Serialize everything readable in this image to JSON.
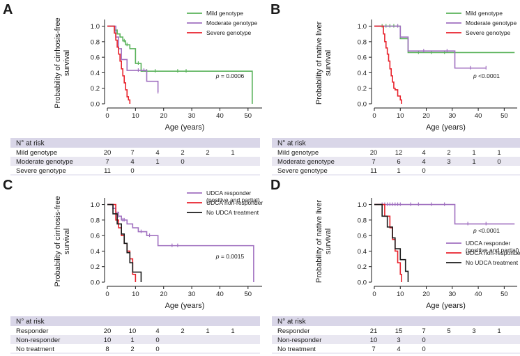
{
  "chart_data": [
    {
      "type": "line",
      "subtype": "kaplan-meier",
      "panel_label": "A",
      "ylabel_lines": [
        "Probability of cirrhosis-free",
        "survival"
      ],
      "xlabel": "Age (years)",
      "xlim": [
        0,
        55
      ],
      "ylim": [
        0,
        1.05
      ],
      "xticks": [
        0,
        10,
        20,
        30,
        40,
        50
      ],
      "yticks": [
        "0.0",
        "0.2",
        "0.4",
        "0.6",
        "0.8",
        "1.0"
      ],
      "p_label": "p",
      "p_value": " = 0.0006",
      "series": [
        {
          "name": "Mild genotype",
          "color": "#59b25a",
          "x": [
            0,
            2.5,
            3.5,
            4.5,
            5.5,
            6.5,
            8,
            10,
            12,
            51.5,
            51.5
          ],
          "y": [
            1.0,
            0.95,
            0.9,
            0.86,
            0.81,
            0.76,
            0.71,
            0.52,
            0.42,
            0.42,
            0.0
          ],
          "censor_x": [
            6,
            7,
            11,
            14,
            17,
            25,
            28
          ]
        },
        {
          "name": "Moderate genotype",
          "color": "#a070c0",
          "x": [
            0,
            3,
            4,
            5,
            7,
            10,
            14,
            18,
            18
          ],
          "y": [
            1.0,
            0.86,
            0.71,
            0.57,
            0.43,
            0.43,
            0.29,
            0.29,
            0.15
          ],
          "censor_x": [
            11,
            13,
            18
          ]
        },
        {
          "name": "Severe genotype",
          "color": "#e8212b",
          "x": [
            0,
            2.5,
            3,
            3.5,
            4,
            4.5,
            5,
            5.5,
            6,
            6.5,
            7,
            7.5,
            8
          ],
          "y": [
            1.0,
            0.91,
            0.82,
            0.73,
            0.64,
            0.55,
            0.45,
            0.36,
            0.27,
            0.18,
            0.09,
            0.05,
            0.0
          ],
          "censor_x": []
        }
      ],
      "risk_table": {
        "title": "N° at risk",
        "rows": [
          {
            "label": "Mild genotype",
            "values": [
              "20",
              "7",
              "4",
              "2",
              "2",
              "1"
            ]
          },
          {
            "label": "Moderate genotype",
            "values": [
              "7",
              "4",
              "1",
              "0"
            ]
          },
          {
            "label": "Severe genotype",
            "values": [
              "11",
              "0"
            ]
          }
        ]
      }
    },
    {
      "type": "line",
      "subtype": "kaplan-meier",
      "panel_label": "B",
      "ylabel_lines": [
        "Probability of native liver",
        "survival"
      ],
      "xlabel": "Age (years)",
      "xlim": [
        0,
        55
      ],
      "ylim": [
        0,
        1.05
      ],
      "xticks": [
        0,
        10,
        20,
        30,
        40,
        50
      ],
      "yticks": [
        "0.0",
        "0.2",
        "0.4",
        "0.6",
        "0.8",
        "1.0"
      ],
      "p_label": "p",
      "p_value": " <0.0001",
      "series": [
        {
          "name": "Mild genotype",
          "color": "#59b25a",
          "x": [
            0,
            10,
            13,
            54
          ],
          "y": [
            1.0,
            0.84,
            0.66,
            0.66
          ],
          "censor_x": [
            3,
            4.5,
            6,
            7.5,
            9,
            17,
            22,
            27
          ]
        },
        {
          "name": "Moderate genotype",
          "color": "#a070c0",
          "x": [
            0,
            10,
            13,
            31,
            43
          ],
          "y": [
            1.0,
            0.86,
            0.68,
            0.46,
            0.46
          ],
          "censor_x": [
            9,
            19,
            28,
            37,
            43
          ]
        },
        {
          "name": "Severe genotype",
          "color": "#e8212b",
          "x": [
            0,
            3.5,
            4,
            4.5,
            5,
            5.5,
            6,
            6.5,
            7,
            7.5,
            8,
            9,
            10,
            10.5
          ],
          "y": [
            1.0,
            0.9,
            0.8,
            0.72,
            0.64,
            0.55,
            0.45,
            0.36,
            0.28,
            0.2,
            0.18,
            0.1,
            0.05,
            0.0
          ],
          "censor_x": []
        }
      ],
      "risk_table": {
        "title": "N° at risk",
        "rows": [
          {
            "label": "Mild genotype",
            "values": [
              "20",
              "12",
              "4",
              "2",
              "1",
              "1"
            ]
          },
          {
            "label": "Moderate genotype",
            "values": [
              "7",
              "6",
              "4",
              "3",
              "1",
              "0"
            ]
          },
          {
            "label": "Severe genotype",
            "values": [
              "11",
              "1",
              "0"
            ]
          }
        ]
      }
    },
    {
      "type": "line",
      "subtype": "kaplan-meier",
      "panel_label": "C",
      "ylabel_lines": [
        "Probability of cirrhosis-free",
        "survival"
      ],
      "xlabel": "Age (years)",
      "xlim": [
        0,
        55
      ],
      "ylim": [
        0,
        1.05
      ],
      "xticks": [
        0,
        10,
        20,
        30,
        40,
        50
      ],
      "yticks": [
        "0.0",
        "0.2",
        "0.4",
        "0.6",
        "0.8",
        "1.0"
      ],
      "p_label": "p",
      "p_value": " = 0.0015",
      "series": [
        {
          "name": "UDCA responder|(positive and partial)",
          "color": "#a070c0",
          "x": [
            0,
            2,
            3,
            4,
            5,
            7,
            9,
            11,
            14,
            18,
            52,
            52
          ],
          "y": [
            1.0,
            0.95,
            0.9,
            0.85,
            0.8,
            0.75,
            0.7,
            0.65,
            0.6,
            0.47,
            0.47,
            0.0
          ],
          "censor_x": [
            4,
            5.5,
            6,
            12,
            15,
            23,
            25
          ]
        },
        {
          "name": "UDCA non-responder",
          "color": "#e8212b",
          "x": [
            0,
            3,
            4,
            5,
            6,
            7,
            8,
            9,
            10
          ],
          "y": [
            1.0,
            0.8,
            0.7,
            0.6,
            0.5,
            0.4,
            0.3,
            0.1,
            0.0
          ],
          "censor_x": []
        },
        {
          "name": "No UDCA treatment",
          "color": "#1a1a1a",
          "x": [
            0,
            2,
            3.5,
            5,
            6,
            7,
            8,
            9,
            12
          ],
          "y": [
            1.0,
            0.88,
            0.75,
            0.62,
            0.5,
            0.38,
            0.25,
            0.13,
            0.0
          ],
          "censor_x": []
        }
      ],
      "risk_table": {
        "title": "N° at risk",
        "rows": [
          {
            "label": "Responder",
            "values": [
              "20",
              "10",
              "4",
              "2",
              "1",
              "1"
            ]
          },
          {
            "label": "Non-responder",
            "values": [
              "10",
              "1",
              "0"
            ]
          },
          {
            "label": "No treatment",
            "values": [
              "8",
              "2",
              "0"
            ]
          }
        ]
      }
    },
    {
      "type": "line",
      "subtype": "kaplan-meier",
      "panel_label": "D",
      "ylabel_lines": [
        "Probability of native liver",
        "survival"
      ],
      "xlabel": "Age (years)",
      "xlim": [
        0,
        55
      ],
      "ylim": [
        0,
        1.05
      ],
      "xticks": [
        0,
        10,
        20,
        30,
        40,
        50
      ],
      "yticks": [
        "0.0",
        "0.2",
        "0.4",
        "0.6",
        "0.8",
        "1.0"
      ],
      "p_label": "p",
      "p_value": " <0.0001",
      "series": [
        {
          "name": "UDCA responder|(positive and partial)",
          "color": "#a070c0",
          "x": [
            0,
            31,
            54
          ],
          "y": [
            1.0,
            0.75,
            0.75
          ],
          "censor_x": [
            3,
            4,
            5,
            6,
            7,
            8,
            9,
            10,
            14,
            17,
            22,
            27,
            36,
            43
          ]
        },
        {
          "name": "UDCA non-responder",
          "color": "#e8212b",
          "x": [
            0,
            4,
            6,
            7,
            8,
            9,
            10,
            10.5
          ],
          "y": [
            1.0,
            0.85,
            0.7,
            0.55,
            0.4,
            0.25,
            0.1,
            0.0
          ],
          "censor_x": []
        },
        {
          "name": "No UDCA treatment",
          "color": "#1a1a1a",
          "x": [
            0,
            3,
            5,
            7,
            8,
            10,
            12,
            13
          ],
          "y": [
            1.0,
            0.85,
            0.71,
            0.57,
            0.43,
            0.29,
            0.14,
            0.0
          ],
          "censor_x": []
        }
      ],
      "risk_table": {
        "title": "N° at risk",
        "rows": [
          {
            "label": "Responder",
            "values": [
              "21",
              "15",
              "7",
              "5",
              "3",
              "1"
            ]
          },
          {
            "label": "Non-responder",
            "values": [
              "10",
              "3",
              "0"
            ]
          },
          {
            "label": "No treatment",
            "values": [
              "7",
              "4",
              "0"
            ]
          }
        ]
      }
    }
  ]
}
